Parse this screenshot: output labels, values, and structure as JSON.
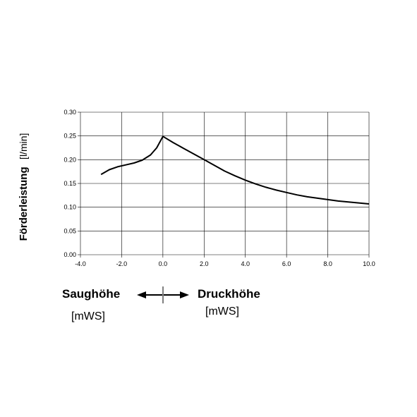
{
  "chart_data": {
    "type": "line",
    "ylabel": "Förderleistung",
    "ylabel_unit": "[l/min]",
    "xlim": [
      -4.0,
      10.0
    ],
    "ylim": [
      0.0,
      0.3
    ],
    "x_ticks": [
      -4,
      -2,
      0,
      2,
      4,
      6,
      8,
      10
    ],
    "x_tick_labels": [
      "-4.0",
      "-2.0",
      "0.0",
      "2.0",
      "4.0",
      "6.0",
      "8.0",
      "10.0"
    ],
    "y_ticks": [
      0,
      0.05,
      0.1,
      0.15,
      0.2,
      0.25,
      0.3
    ],
    "y_tick_labels": [
      "0.00",
      "0.05",
      "0.10",
      "0.15",
      "0.20",
      "0.25",
      "0.30"
    ],
    "grid": true,
    "series": [
      {
        "x": [
          -3.0,
          -2.6,
          -2.2,
          -1.8,
          -1.4,
          -1.0,
          -0.6,
          -0.3,
          0.0,
          0.5,
          1.0,
          1.5,
          2.0,
          2.5,
          3.0,
          3.5,
          4.0,
          4.5,
          5.0,
          5.5,
          6.0,
          6.5,
          7.0,
          7.5,
          8.0,
          8.5,
          9.0,
          9.5,
          10.0
        ],
        "y": [
          0.169,
          0.179,
          0.185,
          0.189,
          0.193,
          0.199,
          0.21,
          0.225,
          0.249,
          0.236,
          0.224,
          0.212,
          0.2,
          0.188,
          0.176,
          0.166,
          0.157,
          0.149,
          0.142,
          0.136,
          0.131,
          0.126,
          0.122,
          0.119,
          0.116,
          0.113,
          0.111,
          0.109,
          0.107
        ]
      }
    ]
  },
  "annotations": {
    "suction_label": "Saughöhe",
    "suction_unit": "[mWS]",
    "pressure_label": "Druckhöhe",
    "pressure_unit": "[mWS]"
  },
  "colors": {
    "line": "#000000",
    "grid": "#000000"
  }
}
